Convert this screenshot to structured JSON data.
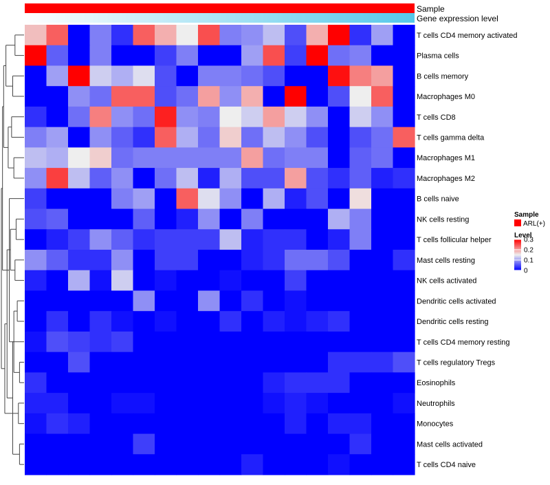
{
  "chart_data": {
    "type": "heatmap",
    "title": "",
    "annotation_tracks": [
      {
        "label": "Sample",
        "value": "ARL(+)",
        "color": "#ff0000"
      },
      {
        "label": "Gene expression level",
        "type": "gradient",
        "low_color": "#ffffff",
        "high_color": "#55c8ea"
      }
    ],
    "rows": [
      "T cells CD4 memory activated",
      "Plasma cells",
      "B cells memory",
      "Macrophages M0",
      "T cells CD8",
      "T cells gamma delta",
      "Macrophages M1",
      "Macrophages M2",
      "B cells naive",
      "NK cells resting",
      "T cells follicular helper",
      "Mast cells resting",
      "NK cells activated",
      "Dendritic cells activated",
      "Dendritic cells resting",
      "T cells CD4 memory resting",
      "T cells regulatory  Tregs",
      "Eosinophils",
      "Neutrophils",
      "Monocytes",
      "Mast cells activated",
      "T cells CD4 naive"
    ],
    "column_count": 18,
    "values": [
      [
        0.18,
        0.24,
        0.0,
        0.08,
        0.03,
        0.24,
        0.19,
        0.15,
        0.25,
        0.08,
        0.09,
        0.12,
        0.05,
        0.19,
        0.3,
        0.03,
        0.1,
        0.0
      ],
      [
        0.3,
        0.06,
        0.0,
        0.08,
        0.0,
        0.0,
        0.04,
        0.08,
        0.0,
        0.0,
        0.1,
        0.25,
        0.04,
        0.3,
        0.07,
        0.08,
        0.0,
        0.0
      ],
      [
        0.0,
        0.1,
        0.3,
        0.13,
        0.11,
        0.14,
        0.05,
        0.0,
        0.08,
        0.08,
        0.07,
        0.05,
        0.0,
        0.0,
        0.29,
        0.22,
        0.2,
        0.0
      ],
      [
        0.0,
        0.0,
        0.09,
        0.07,
        0.24,
        0.24,
        0.05,
        0.07,
        0.2,
        0.09,
        0.19,
        0.0,
        0.3,
        0.0,
        0.05,
        0.15,
        0.24,
        0.0
      ],
      [
        0.03,
        0.0,
        0.07,
        0.22,
        0.09,
        0.07,
        0.28,
        0.09,
        0.08,
        0.15,
        0.13,
        0.2,
        0.13,
        0.09,
        0.0,
        0.13,
        0.09,
        0.0
      ],
      [
        0.08,
        0.1,
        0.0,
        0.09,
        0.06,
        0.03,
        0.24,
        0.11,
        0.07,
        0.17,
        0.07,
        0.12,
        0.09,
        0.05,
        0.0,
        0.05,
        0.07,
        0.24
      ],
      [
        0.12,
        0.11,
        0.15,
        0.17,
        0.07,
        0.08,
        0.08,
        0.08,
        0.08,
        0.08,
        0.2,
        0.07,
        0.08,
        0.08,
        0.0,
        0.06,
        0.07,
        0.0
      ],
      [
        0.09,
        0.26,
        0.12,
        0.06,
        0.09,
        0.0,
        0.07,
        0.12,
        0.02,
        0.11,
        0.05,
        0.05,
        0.2,
        0.05,
        0.03,
        0.06,
        0.02,
        0.03
      ],
      [
        0.04,
        0.0,
        0.0,
        0.0,
        0.08,
        0.1,
        0.0,
        0.24,
        0.14,
        0.09,
        0.0,
        0.11,
        0.02,
        0.05,
        0.0,
        0.16,
        0.0,
        0.0
      ],
      [
        0.05,
        0.06,
        0.0,
        0.0,
        0.0,
        0.06,
        0.0,
        0.02,
        0.09,
        0.0,
        0.08,
        0.0,
        0.0,
        0.0,
        0.11,
        0.08,
        0.0,
        0.0
      ],
      [
        0.0,
        0.02,
        0.04,
        0.09,
        0.06,
        0.03,
        0.04,
        0.04,
        0.04,
        0.12,
        0.02,
        0.03,
        0.03,
        0.0,
        0.02,
        0.08,
        0.0,
        0.0
      ],
      [
        0.09,
        0.06,
        0.03,
        0.03,
        0.09,
        0.0,
        0.04,
        0.04,
        0.0,
        0.0,
        0.02,
        0.03,
        0.07,
        0.07,
        0.05,
        0.0,
        0.0,
        0.03
      ],
      [
        0.02,
        0.0,
        0.11,
        0.01,
        0.13,
        0.0,
        0.01,
        0.0,
        0.0,
        0.01,
        0.0,
        0.0,
        0.04,
        0.0,
        0.0,
        0.0,
        0.0,
        0.0
      ],
      [
        0.0,
        0.0,
        0.0,
        0.0,
        0.0,
        0.09,
        0.0,
        0.0,
        0.09,
        0.0,
        0.03,
        0.0,
        0.01,
        0.0,
        0.0,
        0.0,
        0.0,
        0.0
      ],
      [
        0.0,
        0.03,
        0.0,
        0.03,
        0.01,
        0.0,
        0.01,
        0.0,
        0.0,
        0.03,
        0.0,
        0.02,
        0.01,
        0.02,
        0.03,
        0.0,
        0.0,
        0.0
      ],
      [
        0.01,
        0.05,
        0.04,
        0.03,
        0.04,
        0.0,
        0.0,
        0.0,
        0.0,
        0.0,
        0.0,
        0.0,
        0.0,
        0.0,
        0.0,
        0.0,
        0.0,
        0.0
      ],
      [
        0.0,
        0.0,
        0.05,
        0.0,
        0.0,
        0.0,
        0.0,
        0.0,
        0.0,
        0.0,
        0.0,
        0.0,
        0.0,
        0.0,
        0.03,
        0.03,
        0.03,
        0.05
      ],
      [
        0.03,
        0.0,
        0.0,
        0.0,
        0.0,
        0.0,
        0.0,
        0.0,
        0.0,
        0.0,
        0.0,
        0.02,
        0.03,
        0.03,
        0.03,
        0.0,
        0.0,
        0.0
      ],
      [
        0.02,
        0.02,
        0.0,
        0.0,
        0.01,
        0.01,
        0.0,
        0.0,
        0.0,
        0.0,
        0.0,
        0.01,
        0.02,
        0.01,
        0.0,
        0.0,
        0.0,
        0.01
      ],
      [
        0.01,
        0.03,
        0.02,
        0.0,
        0.0,
        0.0,
        0.0,
        0.0,
        0.0,
        0.0,
        0.0,
        0.0,
        0.02,
        0.0,
        0.02,
        0.02,
        0.0,
        0.0
      ],
      [
        0.0,
        0.0,
        0.0,
        0.0,
        0.0,
        0.04,
        0.0,
        0.0,
        0.0,
        0.0,
        0.0,
        0.0,
        0.0,
        0.0,
        0.0,
        0.03,
        0.0,
        0.0
      ],
      [
        0.0,
        0.0,
        0.0,
        0.0,
        0.0,
        0.0,
        0.0,
        0.0,
        0.0,
        0.0,
        0.02,
        0.0,
        0.0,
        0.0,
        0.01,
        0.0,
        0.0,
        0.0
      ]
    ],
    "color_scale": {
      "min": 0,
      "mid": 0.15,
      "max": 0.3,
      "colors": [
        "#0000ff",
        "#eeeeee",
        "#ff0000"
      ]
    },
    "legend": {
      "placement": "right",
      "sample_title": "Sample",
      "sample_label": "ARL(+)",
      "level_title": "Level",
      "level_ticks": [
        {
          "value": 0.3,
          "label": "0.3"
        },
        {
          "value": 0.2,
          "label": "0.2"
        },
        {
          "value": 0.1,
          "label": "0.1"
        },
        {
          "value": 0,
          "label": "0"
        }
      ]
    },
    "dendrogram": {
      "side": "left",
      "merges": [
        [
          0,
          1
        ],
        [
          2,
          3
        ],
        [
          4,
          5
        ],
        [
          6,
          7
        ],
        [
          9,
          10
        ],
        [
          11,
          12
        ],
        [
          13,
          14
        ],
        [
          16,
          17
        ],
        [
          18,
          19
        ],
        [
          20,
          21
        ],
        [
          "n7",
          "n8"
        ],
        [
          "n5",
          "n6"
        ],
        [
          15,
          "n10"
        ],
        [
          "n3",
          "n4"
        ],
        [
          "n1",
          "n2"
        ],
        [
          "n12",
          "n13"
        ],
        [
          8,
          "n11"
        ],
        [
          "n9",
          "n16"
        ],
        [
          "n14",
          "n15"
        ],
        [
          "n19",
          "n17"
        ],
        [
          "n18",
          "n20"
        ]
      ],
      "heights": [
        0.4,
        0.5,
        0.55,
        0.45,
        0.35,
        0.4,
        0.3,
        0.2,
        0.25,
        0.2,
        0.45,
        0.6,
        0.5,
        0.7,
        0.8,
        0.75,
        0.65,
        0.85,
        0.9,
        0.95,
        1.0
      ]
    }
  }
}
